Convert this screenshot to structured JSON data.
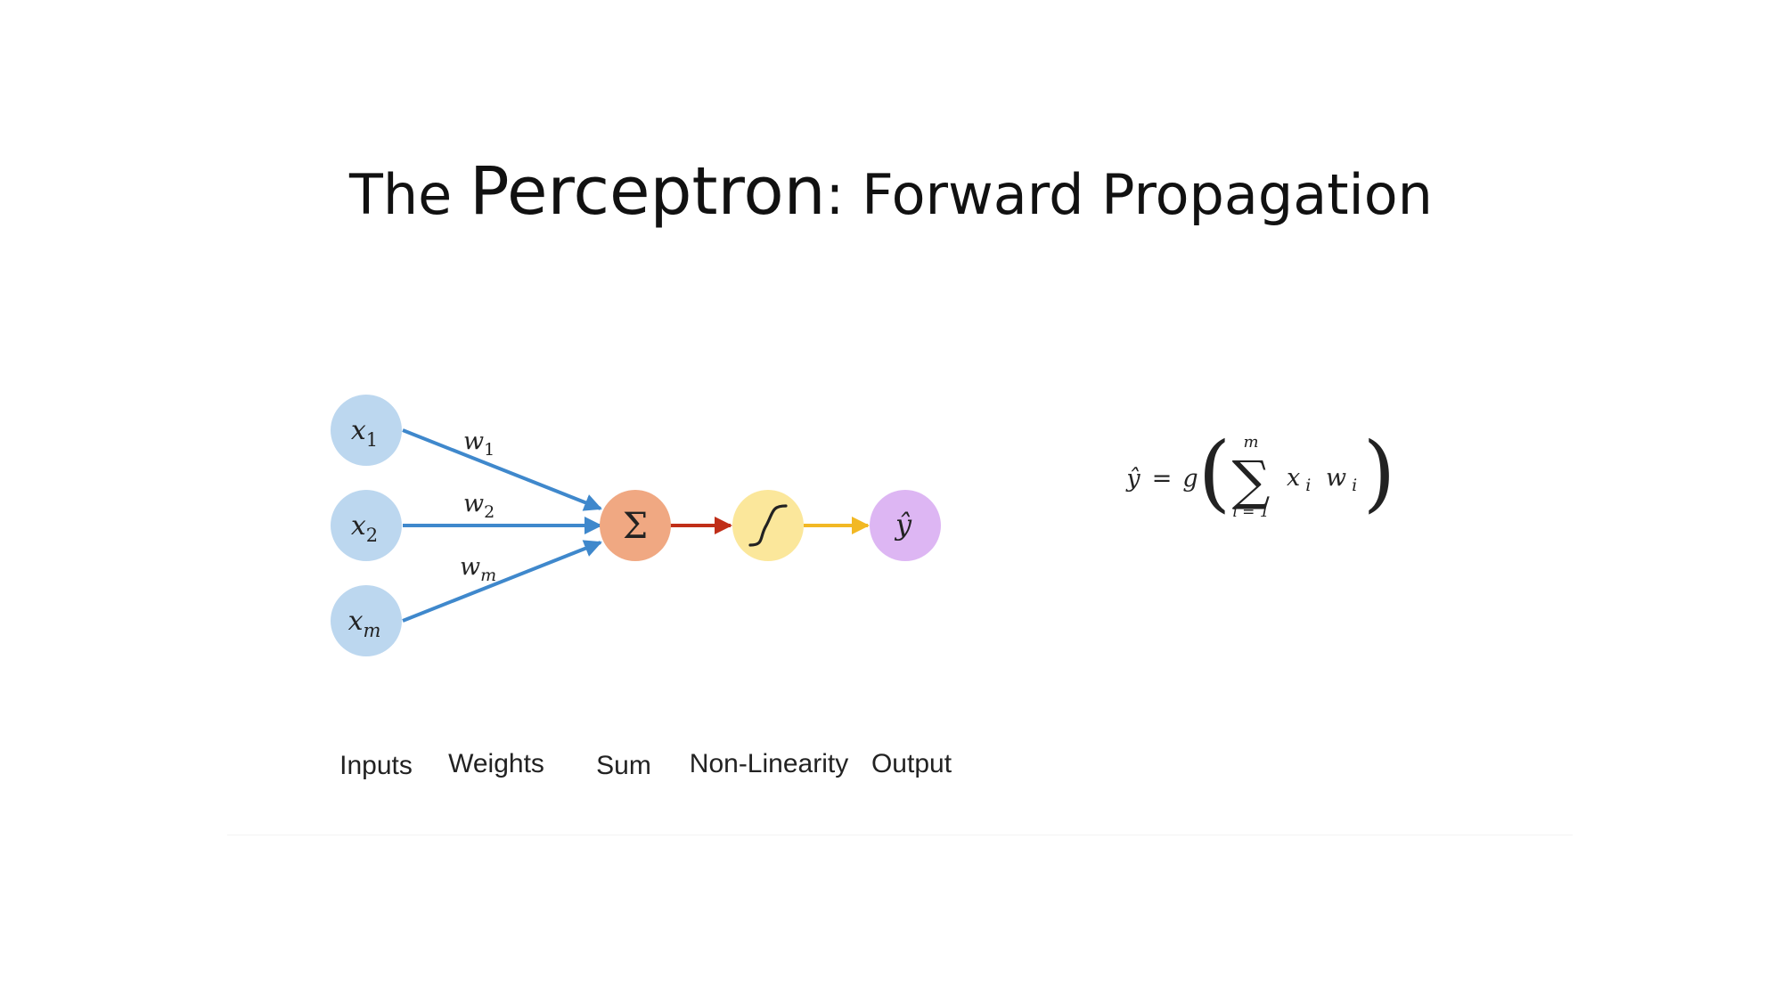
{
  "title": {
    "prefix": "The ",
    "main": "Perceptron",
    "suffix": ": Forward Propagation"
  },
  "nodes": {
    "inputs": [
      {
        "base": "x",
        "sub": "1"
      },
      {
        "base": "x",
        "sub": "2"
      },
      {
        "base": "x",
        "sub": "m"
      }
    ],
    "sum_symbol": "Σ",
    "output": "ŷ"
  },
  "weights": [
    {
      "base": "w",
      "sub": "1"
    },
    {
      "base": "w",
      "sub": "2"
    },
    {
      "base": "w",
      "sub": "m"
    }
  ],
  "stage_labels": [
    "Inputs",
    "Weights",
    "Sum",
    "Non-Linearity",
    "Output"
  ],
  "equation": {
    "lhs": "ŷ",
    "eq": "=",
    "g": "g",
    "lparen": "(",
    "rparen": ")",
    "sigma": "∑",
    "upper": "m",
    "lower": "i = 1",
    "x": "x",
    "x_sub": "i",
    "w": "w",
    "w_sub": "i"
  },
  "colors": {
    "input_node": "#bcd7ef",
    "sum_node": "#f0a882",
    "activation_node": "#fbe79b",
    "output_node": "#ddb6f3",
    "input_arrows": "#3f88cc",
    "sum_arrow": "#c02e18",
    "activation_arrow": "#f2b824"
  }
}
